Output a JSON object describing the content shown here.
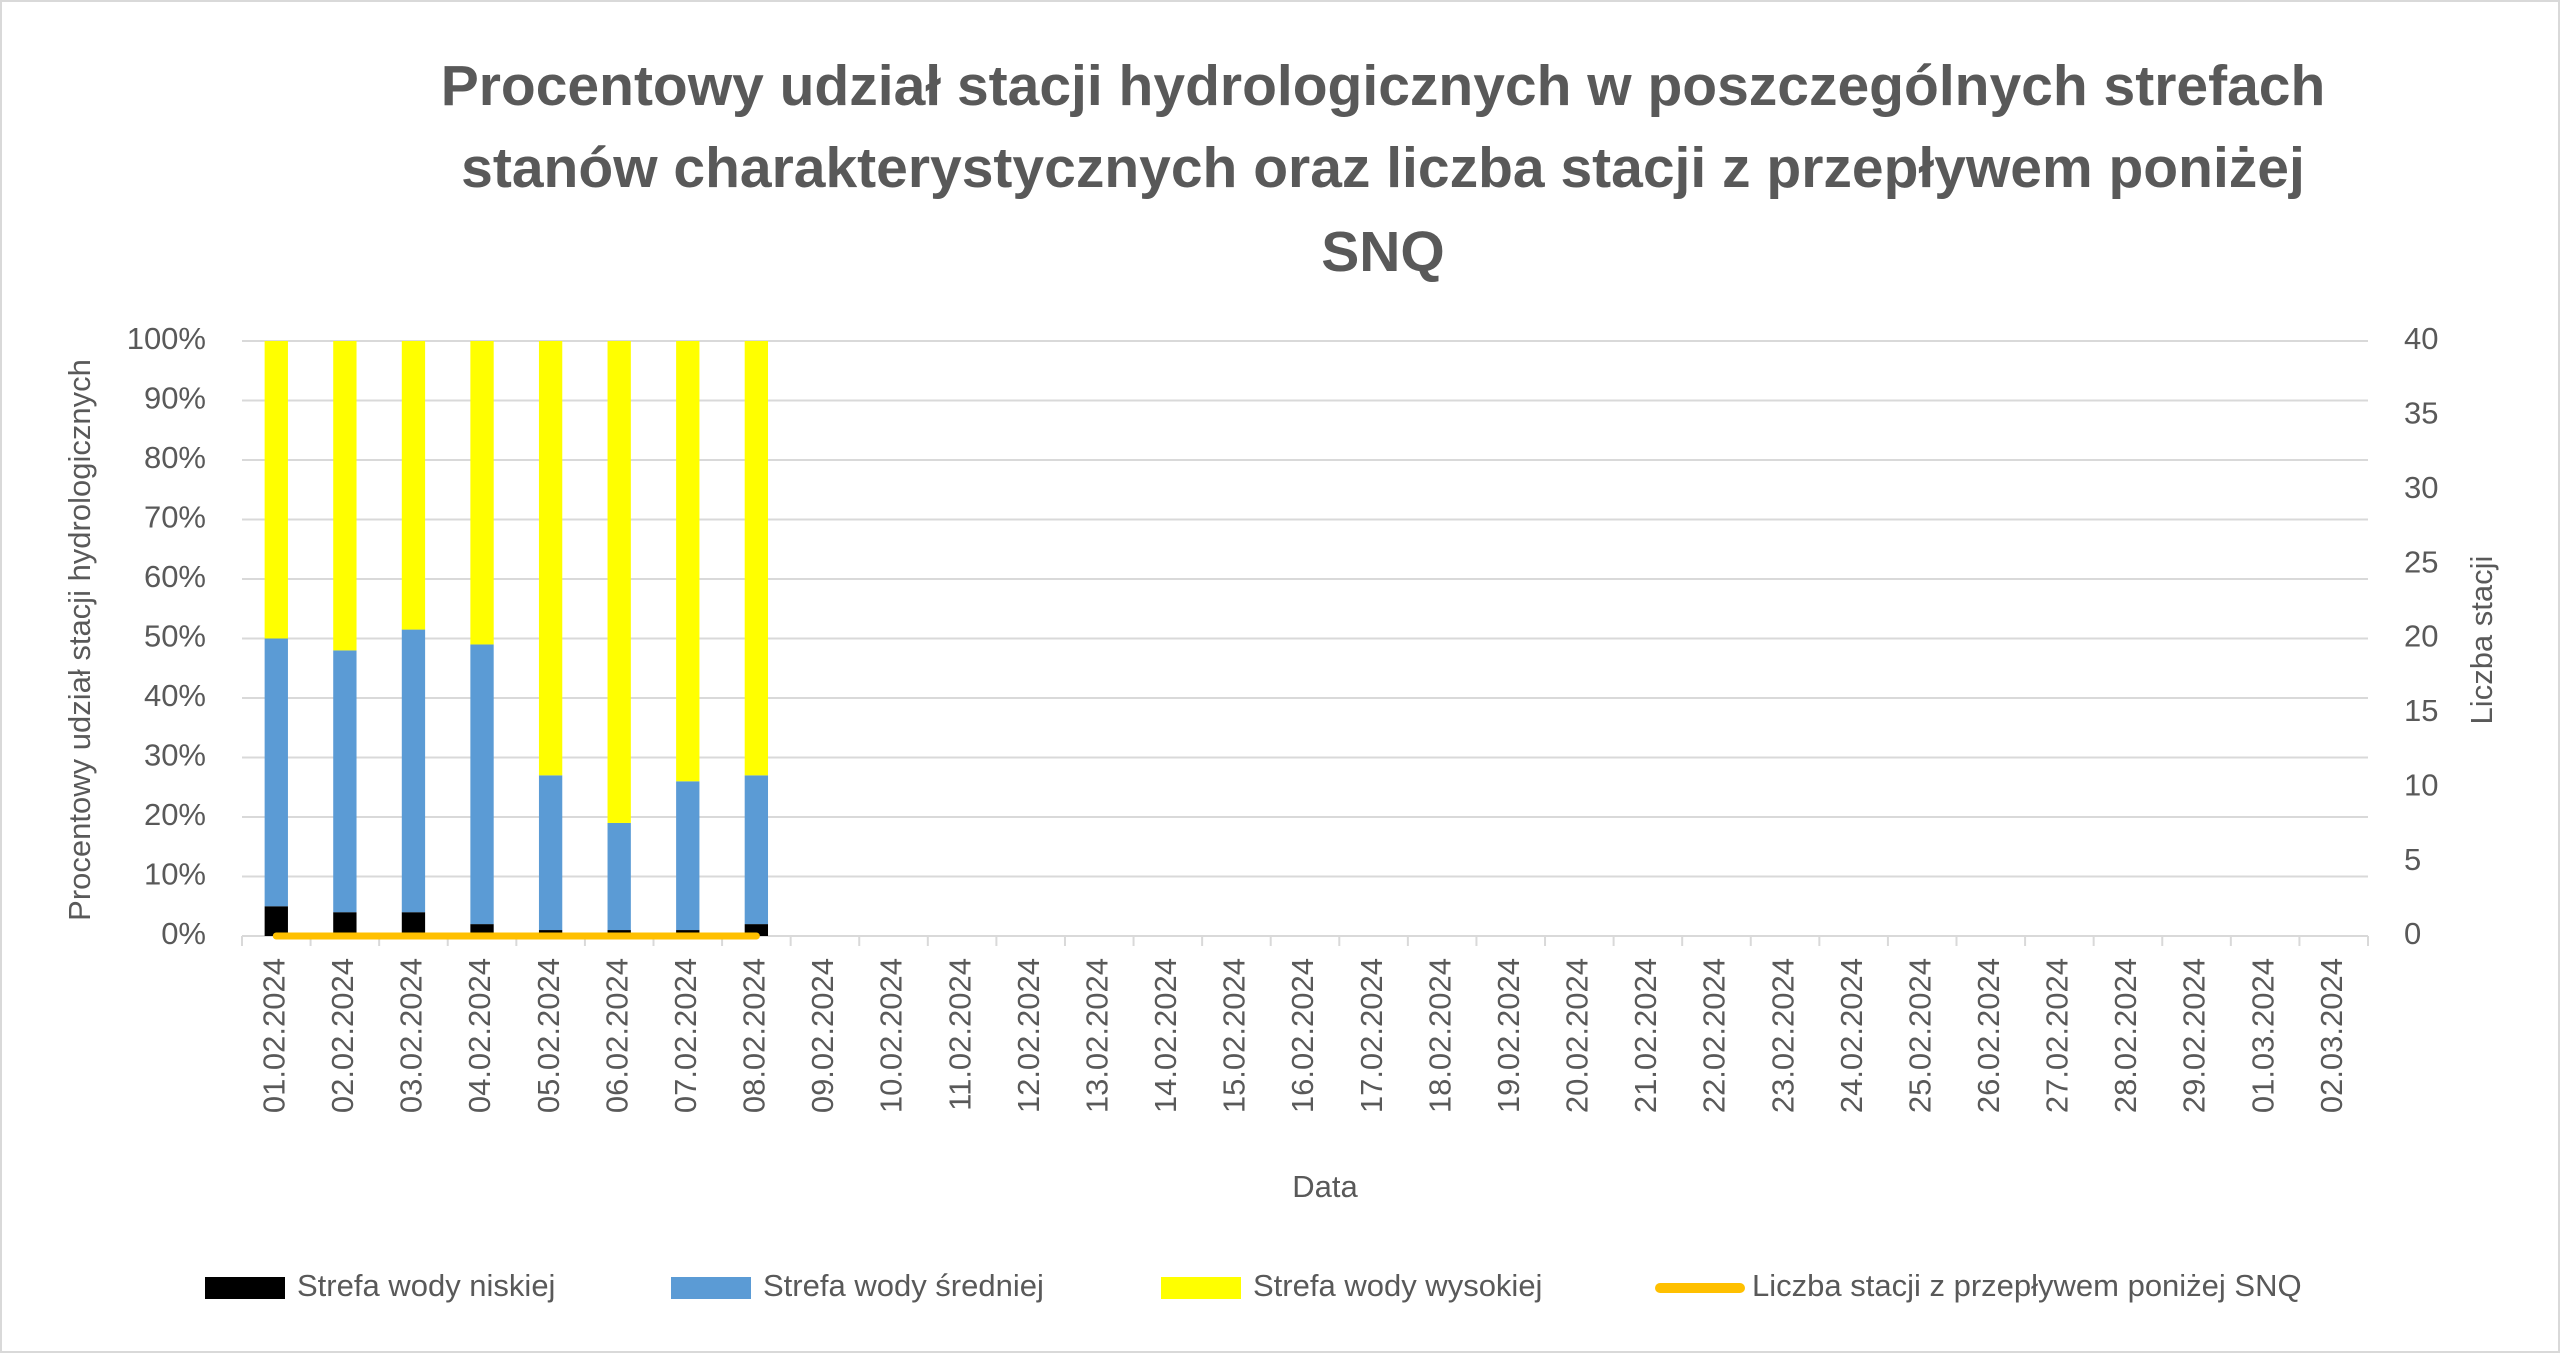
{
  "chart_data": {
    "type": "bar",
    "title": [
      "Procentowy udział stacji hydrologicznych w poszczególnych strefach",
      "stanów charakterystycznych oraz liczba stacji z przepływem poniżej",
      "SNQ"
    ],
    "x_label": "Data",
    "y_label": "Procentowy udział stacji hydrologicznych",
    "y2_label": "Liczba stacji",
    "categories": [
      "01.02.2024",
      "02.02.2024",
      "03.02.2024",
      "04.02.2024",
      "05.02.2024",
      "06.02.2024",
      "07.02.2024",
      "08.02.2024",
      "09.02.2024",
      "10.02.2024",
      "11.02.2024",
      "12.02.2024",
      "13.02.2024",
      "14.02.2024",
      "15.02.2024",
      "16.02.2024",
      "17.02.2024",
      "18.02.2024",
      "19.02.2024",
      "20.02.2024",
      "21.02.2024",
      "22.02.2024",
      "23.02.2024",
      "24.02.2024",
      "25.02.2024",
      "26.02.2024",
      "27.02.2024",
      "28.02.2024",
      "29.02.2024",
      "01.03.2024",
      "02.03.2024"
    ],
    "series": [
      {
        "name": "Strefa wody niskiej",
        "color": "#000000",
        "values": [
          5,
          4,
          4,
          2,
          1,
          1,
          1,
          2,
          null,
          null,
          null,
          null,
          null,
          null,
          null,
          null,
          null,
          null,
          null,
          null,
          null,
          null,
          null,
          null,
          null,
          null,
          null,
          null,
          null,
          null,
          null
        ]
      },
      {
        "name": "Strefa wody średniej",
        "color": "#5b9bd5",
        "values": [
          45,
          44,
          47.5,
          47,
          26,
          18,
          25,
          25,
          null,
          null,
          null,
          null,
          null,
          null,
          null,
          null,
          null,
          null,
          null,
          null,
          null,
          null,
          null,
          null,
          null,
          null,
          null,
          null,
          null,
          null,
          null
        ]
      },
      {
        "name": "Strefa wody wysokiej",
        "color": "#ffff00",
        "values": [
          50,
          52,
          48.5,
          51,
          73,
          81,
          74,
          73,
          null,
          null,
          null,
          null,
          null,
          null,
          null,
          null,
          null,
          null,
          null,
          null,
          null,
          null,
          null,
          null,
          null,
          null,
          null,
          null,
          null,
          null,
          null
        ]
      },
      {
        "name": "Liczba stacji z przepływem poniżej SNQ",
        "color": "#ffc000",
        "type": "line",
        "axis": "y2",
        "values": [
          0,
          0,
          0,
          0,
          0,
          0,
          0,
          0,
          null,
          null,
          null,
          null,
          null,
          null,
          null,
          null,
          null,
          null,
          null,
          null,
          null,
          null,
          null,
          null,
          null,
          null,
          null,
          null,
          null,
          null,
          null
        ]
      }
    ],
    "stacked": true,
    "ylim": [
      0,
      100
    ],
    "yticks": [
      {
        "value": 0,
        "label": "0%"
      },
      {
        "value": 10,
        "label": "10%"
      },
      {
        "value": 20,
        "label": "20%"
      },
      {
        "value": 30,
        "label": "30%"
      },
      {
        "value": 40,
        "label": "40%"
      },
      {
        "value": 50,
        "label": "50%"
      },
      {
        "value": 60,
        "label": "60%"
      },
      {
        "value": 70,
        "label": "70%"
      },
      {
        "value": 80,
        "label": "80%"
      },
      {
        "value": 90,
        "label": "90%"
      },
      {
        "value": 100,
        "label": "100%"
      }
    ],
    "y2lim": [
      0,
      40
    ],
    "y2ticks": [
      0,
      5,
      10,
      15,
      20,
      25,
      30,
      35,
      40
    ],
    "grid": true,
    "legend": "bottom"
  }
}
